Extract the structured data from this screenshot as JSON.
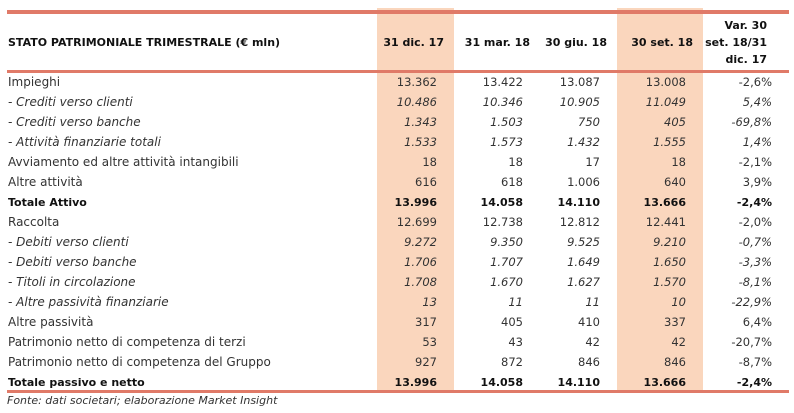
{
  "header": {
    "title": "STATO PATRIMONIALE TRIMESTRALE (€ mln)",
    "columns": [
      "31 dic. 17",
      "31 mar. 18",
      "30 giu. 18",
      "30 set. 18"
    ],
    "var_line1": "Var. 30",
    "var_line2": "set. 18/31",
    "var_line3": "dic. 17"
  },
  "rows": [
    {
      "label": "Impieghi",
      "values": [
        "13.362",
        "13.422",
        "13.087",
        "13.008",
        "-2,6%"
      ]
    },
    {
      "label": "- Crediti verso clienti",
      "values": [
        "10.486",
        "10.346",
        "10.905",
        "11.049",
        "5,4%"
      ]
    },
    {
      "label": "- Crediti verso banche",
      "values": [
        "1.343",
        "1.503",
        "750",
        "405",
        "-69,8%"
      ]
    },
    {
      "label": "- Attività finanziarie totali",
      "values": [
        "1.533",
        "1.573",
        "1.432",
        "1.555",
        "1,4%"
      ]
    },
    {
      "label": "Avviamento ed altre attività intangibili",
      "values": [
        "18",
        "18",
        "17",
        "18",
        "-2,1%"
      ]
    },
    {
      "label": "Altre attività",
      "values": [
        "616",
        "618",
        "1.006",
        "640",
        "3,9%"
      ]
    },
    {
      "label": "Totale Attivo",
      "values": [
        "13.996",
        "14.058",
        "14.110",
        "13.666",
        "-2,4%"
      ]
    },
    {
      "label": "Raccolta",
      "values": [
        "12.699",
        "12.738",
        "12.812",
        "12.441",
        "-2,0%"
      ]
    },
    {
      "label": "- Debiti verso clienti",
      "values": [
        "9.272",
        "9.350",
        "9.525",
        "9.210",
        "-0,7%"
      ]
    },
    {
      "label": "- Debiti verso banche",
      "values": [
        "1.706",
        "1.707",
        "1.649",
        "1.650",
        "-3,3%"
      ]
    },
    {
      "label": "- Titoli in circolazione",
      "values": [
        "1.708",
        "1.670",
        "1.627",
        "1.570",
        "-8,1%"
      ]
    },
    {
      "label": "- Altre passività finanziarie",
      "values": [
        "13",
        "11",
        "11",
        "10",
        "-22,9%"
      ]
    },
    {
      "label": "Altre passività",
      "values": [
        "317",
        "405",
        "410",
        "337",
        "6,4%"
      ]
    },
    {
      "label": "Patrimonio netto di competenza di terzi",
      "values": [
        "53",
        "43",
        "42",
        "42",
        "-20,7%"
      ]
    },
    {
      "label": "Patrimonio netto di competenza del Gruppo",
      "values": [
        "927",
        "872",
        "846",
        "846",
        "-8,7%"
      ]
    },
    {
      "label": "Totale passivo e netto",
      "values": [
        "13.996",
        "14.058",
        "14.110",
        "13.666",
        "-2,4%"
      ]
    }
  ],
  "footer": "Fonte: dati societari; elaborazione Market Insight",
  "colors": {
    "shade": "#fad6bd",
    "rule": "#e07a68"
  }
}
